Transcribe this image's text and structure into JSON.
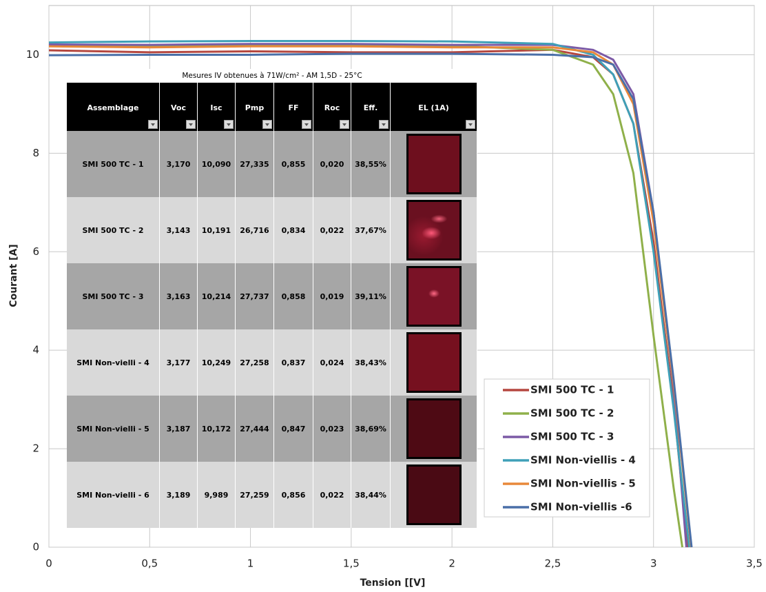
{
  "chart_data": {
    "type": "line",
    "xlabel": "Tension [[V]",
    "ylabel": "Courant [A]",
    "xlim": [
      0,
      3.5
    ],
    "ylim": [
      0,
      11
    ],
    "xticks": [
      0,
      {
        "value": 0.5,
        "label": "0,5"
      },
      1,
      {
        "value": 1.5,
        "label": "1,5"
      },
      2,
      {
        "value": 2.5,
        "label": "2,5"
      },
      3,
      {
        "value": 3.5,
        "label": "3,5"
      }
    ],
    "yticks": [
      0,
      2,
      4,
      6,
      8,
      10
    ],
    "grid": true,
    "legend": "lower-right",
    "series": [
      {
        "name": "SMI 500 TC - 1",
        "color": "#b5473f",
        "x": [
          0,
          0.5,
          1,
          1.5,
          2,
          2.5,
          2.7,
          2.8,
          2.9,
          3.0,
          3.1,
          3.17
        ],
        "values": [
          10.09,
          10.05,
          10.07,
          10.05,
          10.05,
          10.1,
          9.95,
          9.6,
          8.6,
          6.2,
          2.9,
          0
        ]
      },
      {
        "name": "SMI 500 TC - 2",
        "color": "#8fb04a",
        "x": [
          0,
          0.5,
          1,
          1.5,
          2,
          2.5,
          2.7,
          2.8,
          2.9,
          3.0,
          3.1,
          3.143
        ],
        "values": [
          10.19,
          10.18,
          10.2,
          10.2,
          10.18,
          10.1,
          9.8,
          9.2,
          7.6,
          4.3,
          1.2,
          0
        ]
      },
      {
        "name": "SMI 500 TC - 3",
        "color": "#7c5aa6",
        "x": [
          0,
          0.5,
          1,
          1.5,
          2,
          2.5,
          2.7,
          2.8,
          2.9,
          3.0,
          3.1,
          3.163
        ],
        "values": [
          10.21,
          10.2,
          10.22,
          10.22,
          10.2,
          10.2,
          10.1,
          9.9,
          9.2,
          6.8,
          3.2,
          0
        ]
      },
      {
        "name": "SMI Non-viellis - 4",
        "color": "#3fa0b8",
        "x": [
          0,
          0.5,
          1,
          1.5,
          2,
          2.5,
          2.7,
          2.8,
          2.9,
          3.0,
          3.1,
          3.177
        ],
        "values": [
          10.25,
          10.27,
          10.28,
          10.28,
          10.27,
          10.22,
          10.0,
          9.6,
          8.6,
          6.0,
          2.8,
          0
        ]
      },
      {
        "name": "SMI Non-viellis - 5",
        "color": "#e8883a",
        "x": [
          0,
          0.5,
          1,
          1.5,
          2,
          2.5,
          2.7,
          2.8,
          2.9,
          3.0,
          3.1,
          3.187
        ],
        "values": [
          10.17,
          10.15,
          10.17,
          10.17,
          10.15,
          10.15,
          10.05,
          9.8,
          9.0,
          6.6,
          3.3,
          0
        ]
      },
      {
        "name": "SMI Non-viellis -6",
        "color": "#4a6fa8",
        "x": [
          0,
          0.5,
          1,
          1.5,
          2,
          2.5,
          2.7,
          2.8,
          2.9,
          3.0,
          3.1,
          3.189
        ],
        "values": [
          9.99,
          10.0,
          10.0,
          10.02,
          10.02,
          10.0,
          9.95,
          9.8,
          9.1,
          6.8,
          3.4,
          0
        ]
      }
    ]
  },
  "table": {
    "title": "Mesures IV obtenues à 71W/cm² -  AM 1,5D - 25°C",
    "columns": [
      "Assemblage",
      "Voc",
      "Isc",
      "Pmp",
      "FF",
      "Roc",
      "Eff.",
      "EL (1A)"
    ],
    "rows": [
      [
        "SMI 500 TC - 1",
        "3,170",
        "10,090",
        "27,335",
        "0,855",
        "0,020",
        "38,55%"
      ],
      [
        "SMI 500 TC - 2",
        "3,143",
        "10,191",
        "26,716",
        "0,834",
        "0,022",
        "37,67%"
      ],
      [
        "SMI 500 TC - 3",
        "3,163",
        "10,214",
        "27,737",
        "0,858",
        "0,019",
        "39,11%"
      ],
      [
        "SMI Non-vielli - 4",
        "3,177",
        "10,249",
        "27,258",
        "0,837",
        "0,024",
        "38,43%"
      ],
      [
        "SMI Non-vielli - 5",
        "3,187",
        "10,172",
        "27,444",
        "0,847",
        "0,023",
        "38,69%"
      ],
      [
        "SMI Non-vielli - 6",
        "3,189",
        "9,989",
        "27,259",
        "0,856",
        "0,022",
        "38,44%"
      ]
    ]
  }
}
